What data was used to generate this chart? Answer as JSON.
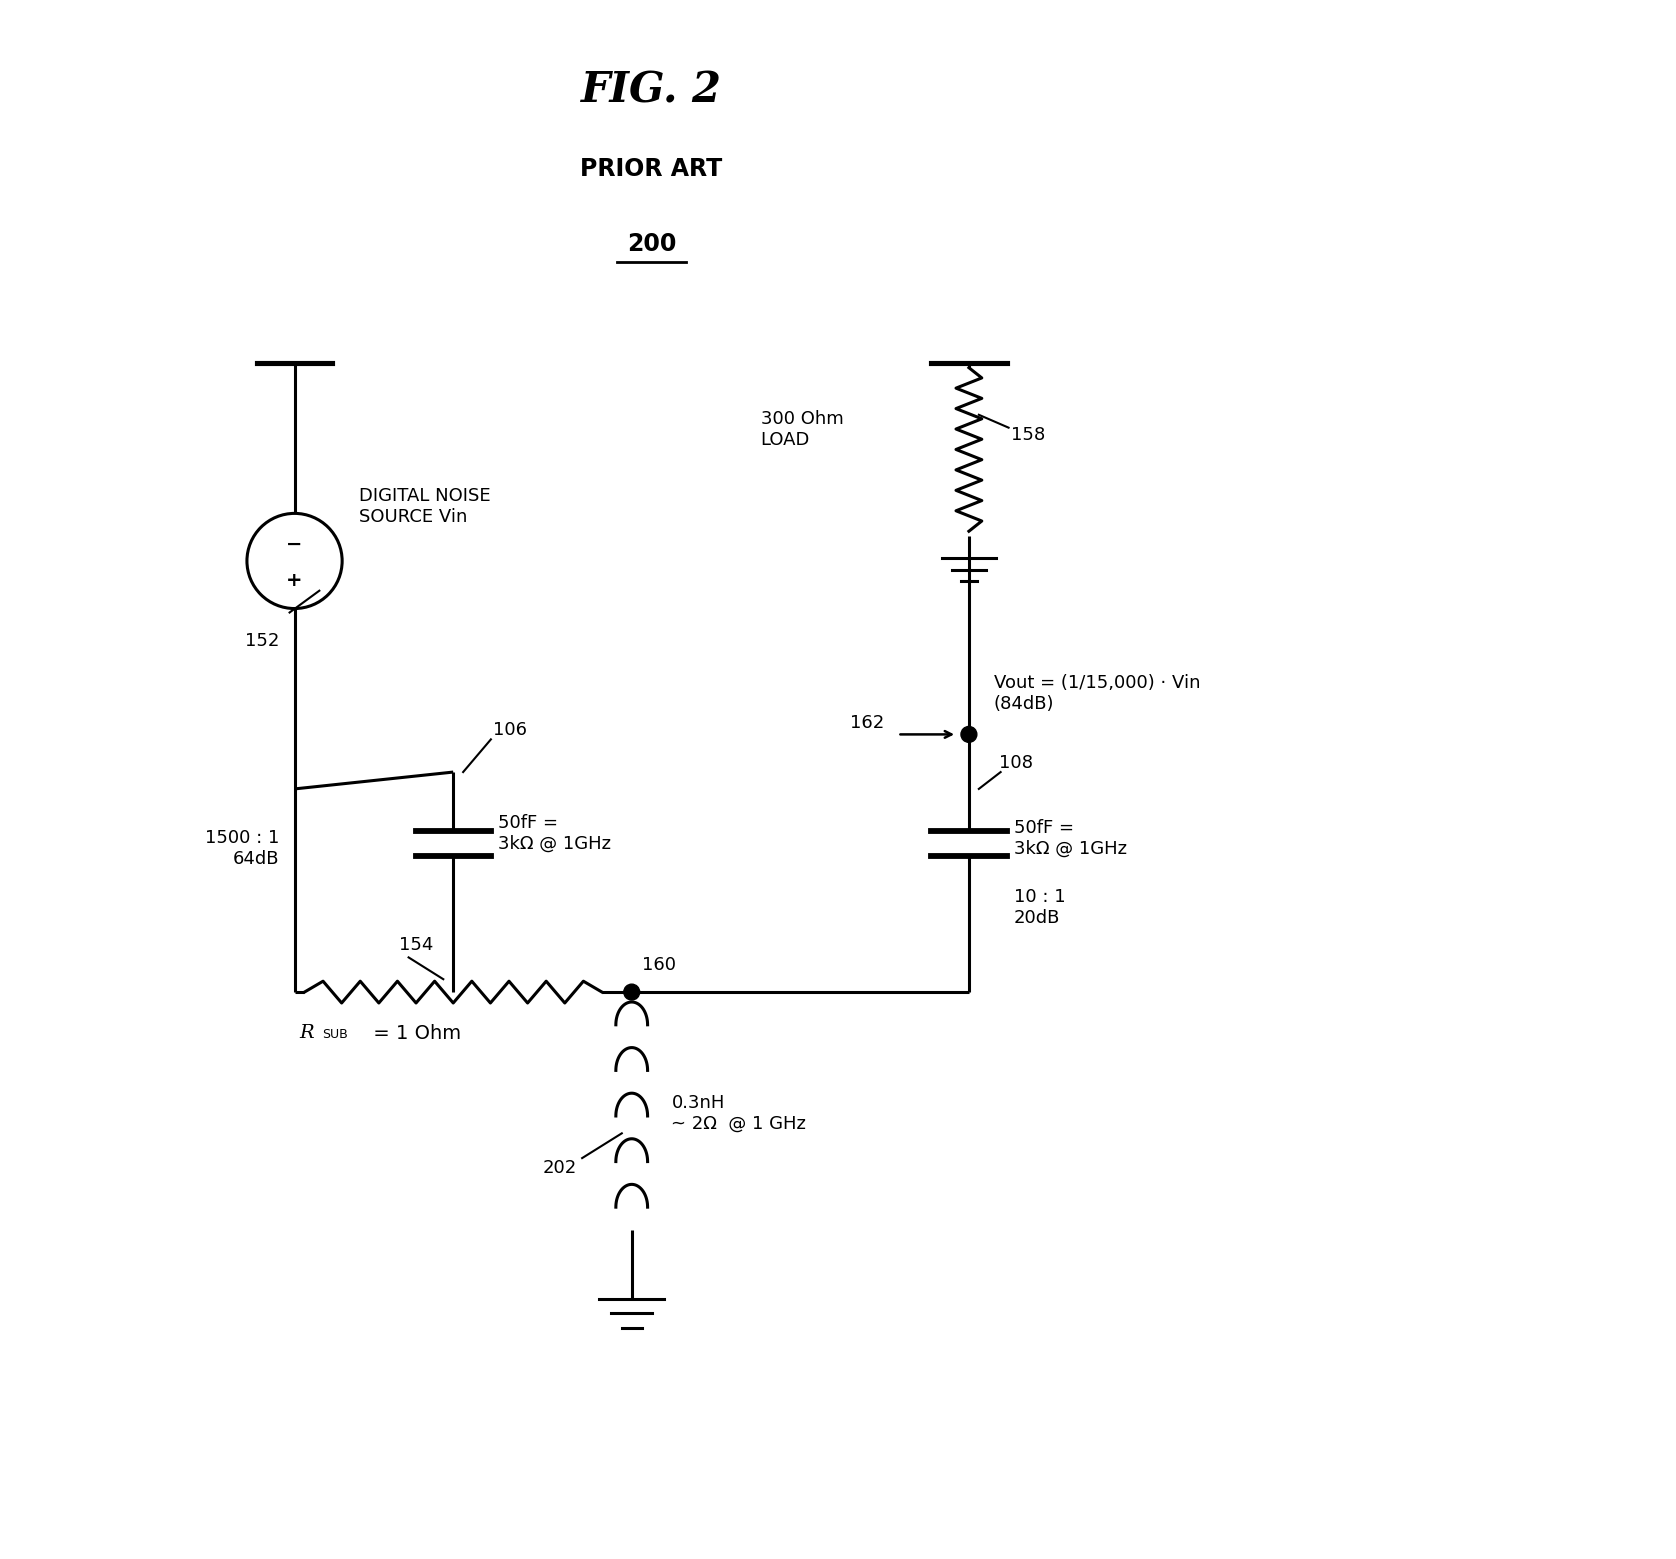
{
  "title": "FIG. 2",
  "subtitle": "PRIOR ART",
  "label_200": "200",
  "bg_color": "#ffffff",
  "line_color": "#000000",
  "lw": 2.2,
  "fig_width": 16.76,
  "fig_height": 15.59,
  "labels": {
    "digital_noise": "DIGITAL NOISE\nSOURCE Vin",
    "label_152": "152",
    "label_106": "106",
    "label_108": "108",
    "label_154": "154",
    "label_158": "158",
    "label_160": "160",
    "label_162": "162",
    "label_202": "202",
    "ratio_left": "1500 : 1\n64dB",
    "cap_left": "50fF =\n3kΩ @ 1GHz",
    "cap_right": "50fF =\n3kΩ @ 1GHz",
    "ratio_right": "10 : 1\n20dB",
    "load_label": "300 Ohm\nLOAD",
    "rsub_label": "R",
    "rsub_sub": "SUB",
    "rsub_rest": " = 1 Ohm",
    "inductor_label": "0.3nH\n~ 2Ω  @ 1 GHz",
    "vout_label": "Vout = (1/15,000) · Vin\n(84dB)"
  }
}
